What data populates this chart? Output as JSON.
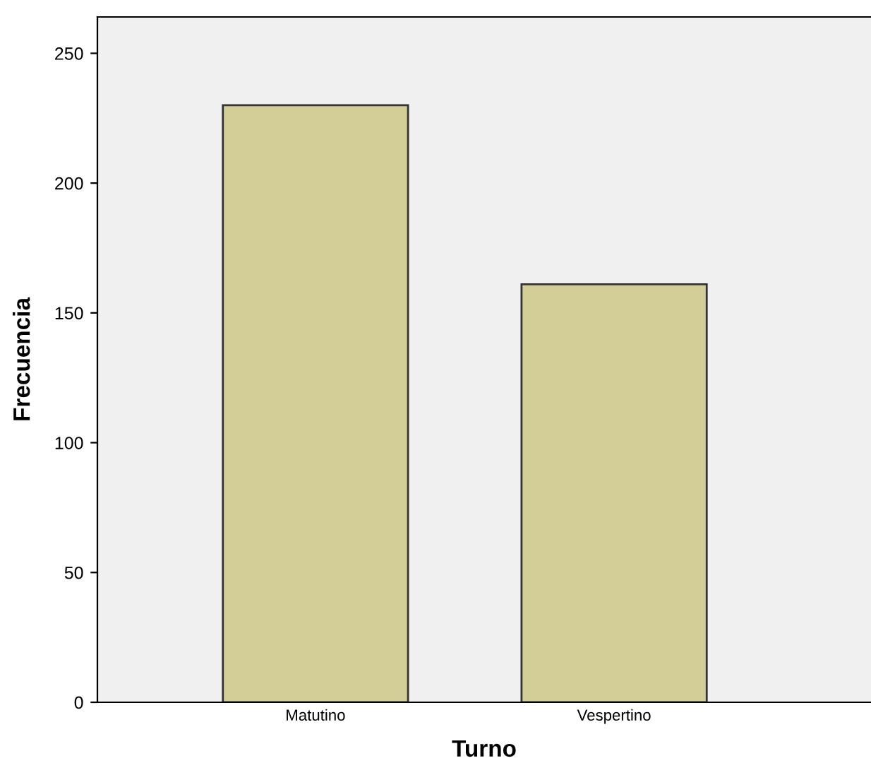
{
  "chart_data": {
    "type": "bar",
    "xlabel": "Turno",
    "ylabel": "Frecuencia",
    "categories": [
      "Matutino",
      "Vespertino"
    ],
    "values": [
      230,
      161
    ],
    "colors": [
      "#d3ce98",
      "#d3ce98"
    ],
    "ylim": [
      0,
      264
    ],
    "yticks": [
      0,
      50,
      100,
      150,
      200,
      250
    ],
    "grid": false
  }
}
